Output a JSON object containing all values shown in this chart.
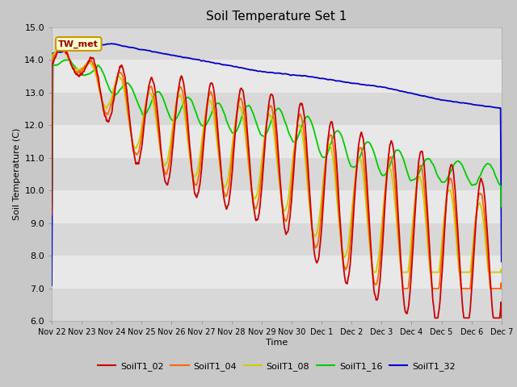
{
  "title": "Soil Temperature Set 1",
  "xlabel": "Time",
  "ylabel": "Soil Temperature (C)",
  "ylim": [
    6.0,
    15.0
  ],
  "yticks": [
    6.0,
    7.0,
    8.0,
    9.0,
    10.0,
    11.0,
    12.0,
    13.0,
    14.0,
    15.0
  ],
  "xtick_labels": [
    "Nov 22",
    "Nov 23",
    "Nov 24",
    "Nov 25",
    "Nov 26",
    "Nov 27",
    "Nov 28",
    "Nov 29",
    "Nov 30",
    "Dec 1",
    "Dec 2",
    "Dec 3",
    "Dec 4",
    "Dec 5",
    "Dec 6",
    "Dec 7"
  ],
  "colors": {
    "SoilT1_02": "#cc0000",
    "SoilT1_04": "#ff6600",
    "SoilT1_08": "#cccc00",
    "SoilT1_16": "#00cc00",
    "SoilT1_32": "#0000cc"
  },
  "plot_bg": "#e8e8e8",
  "band_color": "#d0d0d0",
  "annotation_text": "TW_met",
  "annotation_bg": "#ffffcc",
  "annotation_border": "#cc9900",
  "annotation_fg": "#990000"
}
